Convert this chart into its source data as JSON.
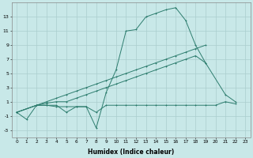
{
  "xlabel": "Humidex (Indice chaleur)",
  "line_color": "#2d7d6e",
  "bg_color": "#c8e8e8",
  "grid_color": "#aacece",
  "ylim": [
    -4,
    15
  ],
  "yticks": [
    -3,
    -1,
    1,
    3,
    5,
    7,
    9,
    11,
    13
  ],
  "xticks": [
    0,
    1,
    2,
    3,
    4,
    5,
    6,
    7,
    8,
    9,
    10,
    11,
    12,
    13,
    14,
    15,
    16,
    17,
    18,
    19,
    20,
    21,
    22,
    23
  ],
  "xlim": [
    -0.5,
    23.5
  ],
  "line1_x": [
    0,
    1,
    2,
    3,
    4,
    5,
    6,
    7,
    8,
    9,
    10,
    11,
    12,
    13,
    14,
    15,
    16,
    17,
    18,
    19
  ],
  "line1_y": [
    -0.5,
    -1.5,
    0.5,
    0.5,
    0.3,
    0.3,
    0.3,
    0.3,
    -2.7,
    2.3,
    5.5,
    11.0,
    11.2,
    13.0,
    13.5,
    14.0,
    14.3,
    12.5,
    9.0,
    6.5
  ],
  "line2_x": [
    0,
    2,
    3,
    4,
    5,
    6,
    7,
    8,
    9,
    10,
    11,
    12,
    13,
    14,
    15,
    16,
    17,
    18,
    19,
    20,
    21,
    22
  ],
  "line2_y": [
    -0.5,
    0.5,
    0.5,
    0.5,
    -0.5,
    0.3,
    0.3,
    -0.5,
    0.5,
    0.5,
    0.5,
    0.5,
    0.5,
    0.5,
    0.5,
    0.5,
    0.5,
    0.5,
    0.5,
    0.5,
    1.0,
    0.7
  ],
  "line3_x": [
    0,
    2,
    3,
    4,
    5,
    6,
    7,
    8,
    9,
    10,
    11,
    12,
    13,
    14,
    15,
    16,
    17,
    18,
    19
  ],
  "line3_y": [
    -0.5,
    0.5,
    1.0,
    1.5,
    2.0,
    2.5,
    3.0,
    3.5,
    4.0,
    4.5,
    5.0,
    5.5,
    6.0,
    6.5,
    7.0,
    7.5,
    8.0,
    8.5,
    9.0
  ],
  "line4_x": [
    0,
    2,
    3,
    4,
    5,
    6,
    7,
    8,
    9,
    10,
    11,
    12,
    13,
    14,
    15,
    16,
    17,
    18,
    19,
    21,
    22
  ],
  "line4_y": [
    -0.5,
    0.5,
    0.8,
    1.0,
    1.0,
    1.5,
    2.0,
    2.5,
    3.0,
    3.5,
    4.0,
    4.5,
    5.0,
    5.5,
    6.0,
    6.5,
    7.0,
    7.5,
    6.5,
    2.0,
    1.0
  ]
}
